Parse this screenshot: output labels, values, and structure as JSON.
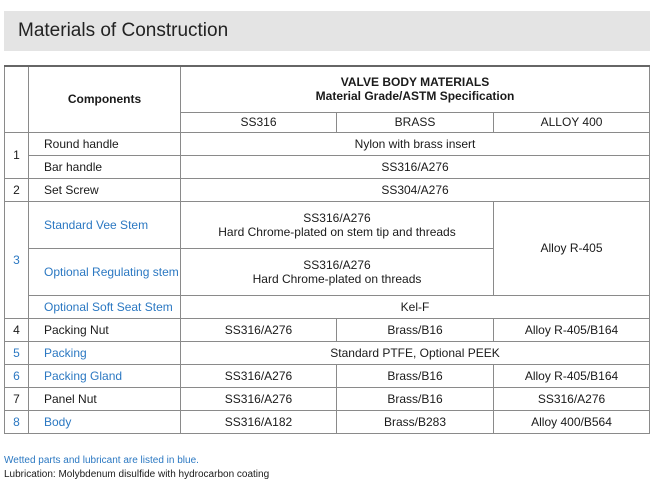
{
  "title": "Materials of Construction",
  "header": {
    "components": "Components",
    "valve_body_materials": "VALVE BODY MATERIALS",
    "material_grade": "Material Grade/ASTM Specification",
    "col1": "SS316",
    "col2": "BRASS",
    "col3": "ALLOY 400"
  },
  "rows": {
    "r1_num": "1",
    "r1a_name": "Round handle",
    "r1a_val": "Nylon with brass insert",
    "r1b_name": "Bar handle",
    "r1b_val": "SS316/A276",
    "r2_num": "2",
    "r2_name": "Set Screw",
    "r2_val": "SS304/A276",
    "r3_num": "3",
    "r3a_name": "Standard Vee Stem",
    "r3a_line1": "SS316/A276",
    "r3a_line2": "Hard Chrome-plated on stem tip and threads",
    "r3_alloy": "Alloy R-405",
    "r3b_name": "Optional Regulating stem",
    "r3b_line1": "SS316/A276",
    "r3b_line2": "Hard Chrome-plated on threads",
    "r3c_name": "Optional Soft Seat Stem",
    "r3c_val": "Kel-F",
    "r4_num": "4",
    "r4_name": "Packing Nut",
    "r4_ss": "SS316/A276",
    "r4_brass": "Brass/B16",
    "r4_alloy": "Alloy R-405/B164",
    "r5_num": "5",
    "r5_name": "Packing",
    "r5_val": "Standard PTFE,  Optional PEEK",
    "r6_num": "6",
    "r6_name": "Packing Gland",
    "r6_ss": "SS316/A276",
    "r6_brass": "Brass/B16",
    "r6_alloy": "Alloy R-405/B164",
    "r7_num": "7",
    "r7_name": "Panel Nut",
    "r7_ss": "SS316/A276",
    "r7_brass": "Brass/B16",
    "r7_alloy": "SS316/A276",
    "r8_num": "8",
    "r8_name": "Body",
    "r8_ss": "SS316/A182",
    "r8_brass": "Brass/B283",
    "r8_alloy": "Alloy 400/B564"
  },
  "notes": {
    "wetted": "Wetted parts and lubricant are listed in blue.",
    "lubrication": "Lubrication: Molybdenum disulfide with hydrocarbon coating"
  },
  "colors": {
    "accent_blue": "#2b78c2",
    "title_bg": "#e4e4e4"
  }
}
